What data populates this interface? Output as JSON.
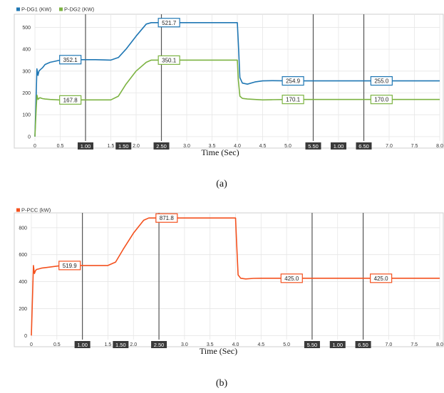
{
  "chart_data": [
    {
      "type": "line",
      "caption": "(a)",
      "xlabel": "Time (Sec)",
      "ylabel": "",
      "xlim": [
        0,
        8.0
      ],
      "ylim": [
        -20,
        560
      ],
      "x_ticks": [
        "0",
        "0.5",
        "1.0",
        "1.5",
        "2.0",
        "2.5",
        "3.0",
        "3.5",
        "4.0",
        "4.5",
        "5.0",
        "5.5",
        "6.0",
        "6.5",
        "7.0",
        "7.5",
        "8.0"
      ],
      "y_ticks": [
        "0",
        "100",
        "200",
        "300",
        "400",
        "500"
      ],
      "grid": true,
      "legend_position": "top-left",
      "series": [
        {
          "name": "P-DG1 (KW)",
          "color": "#1f77b4",
          "x": [
            0,
            0.02,
            0.04,
            0.06,
            0.08,
            0.1,
            0.15,
            0.2,
            0.3,
            0.4,
            0.5,
            0.6,
            0.8,
            1.0,
            1.2,
            1.5,
            1.65,
            1.8,
            2.0,
            2.2,
            2.3,
            2.5,
            2.8,
            3.2,
            3.6,
            3.9,
            4.0,
            4.02,
            4.05,
            4.1,
            4.2,
            4.35,
            4.5,
            4.7,
            5.0,
            5.5,
            6.0,
            6.5,
            7.0,
            8.0
          ],
          "y": [
            0,
            150,
            310,
            280,
            300,
            305,
            315,
            330,
            340,
            345,
            350,
            352,
            352.1,
            352,
            352,
            350,
            362,
            400,
            460,
            515,
            521.7,
            521.7,
            521.7,
            521.7,
            521.7,
            521.7,
            521.7,
            430,
            270,
            245,
            240,
            250,
            255,
            256,
            255,
            254.9,
            255,
            255,
            255,
            255
          ]
        },
        {
          "name": "P-DG2 (KW)",
          "color": "#7cb342",
          "x": [
            0,
            0.02,
            0.04,
            0.06,
            0.08,
            0.1,
            0.15,
            0.2,
            0.3,
            0.5,
            1.0,
            1.5,
            1.65,
            1.8,
            2.0,
            2.2,
            2.3,
            2.5,
            3.0,
            3.5,
            3.9,
            4.0,
            4.02,
            4.05,
            4.1,
            4.2,
            4.35,
            4.5,
            4.7,
            5.0,
            5.5,
            6.0,
            6.5,
            7.0,
            8.0
          ],
          "y": [
            0,
            100,
            190,
            170,
            175,
            178,
            174,
            172,
            170,
            167.8,
            168,
            168,
            185,
            240,
            300,
            340,
            350,
            350.1,
            350,
            350,
            350,
            350,
            260,
            185,
            175,
            172,
            170,
            168,
            169,
            170,
            170.1,
            170,
            170,
            170,
            170
          ]
        }
      ],
      "cursors": [
        {
          "x": 1.0,
          "label": "1.00"
        },
        {
          "x": 2.5,
          "label": "2.50"
        },
        {
          "x": 5.5,
          "label": "5.50"
        },
        {
          "x": 6.5,
          "label": "6.50"
        }
      ],
      "cursor_delta_labels": [
        {
          "x": 1.75,
          "label": "1.50"
        },
        {
          "x": 6.0,
          "label": "1.00"
        }
      ],
      "data_labels": [
        {
          "series": 0,
          "x": 0.7,
          "y": 352.1,
          "text": "352.1"
        },
        {
          "series": 0,
          "x": 2.65,
          "y": 521.7,
          "text": "521.7"
        },
        {
          "series": 0,
          "x": 5.1,
          "y": 254.9,
          "text": "254.9"
        },
        {
          "series": 0,
          "x": 6.85,
          "y": 255.0,
          "text": "255.0"
        },
        {
          "series": 1,
          "x": 0.7,
          "y": 167.8,
          "text": "167.8"
        },
        {
          "series": 1,
          "x": 2.65,
          "y": 350.1,
          "text": "350.1"
        },
        {
          "series": 1,
          "x": 5.1,
          "y": 170.1,
          "text": "170.1"
        },
        {
          "series": 1,
          "x": 6.85,
          "y": 170.0,
          "text": "170.0"
        }
      ]
    },
    {
      "type": "line",
      "caption": "(b)",
      "xlabel": "Time (Sec)",
      "ylabel": "",
      "xlim": [
        0,
        8.0
      ],
      "ylim": [
        -30,
        910
      ],
      "x_ticks": [
        "0",
        "0.5",
        "1.0",
        "1.5",
        "2.0",
        "2.5",
        "3.0",
        "3.5",
        "4.0",
        "4.5",
        "5.0",
        "5.5",
        "6.0",
        "6.5",
        "7.0",
        "7.5",
        "8.0"
      ],
      "y_ticks": [
        "0",
        "200",
        "400",
        "600",
        "800"
      ],
      "grid": true,
      "legend_position": "top-left",
      "series": [
        {
          "name": "P-PCC (kW)",
          "color": "#f4511e",
          "x": [
            0,
            0.02,
            0.04,
            0.06,
            0.08,
            0.1,
            0.15,
            0.2,
            0.3,
            0.5,
            0.6,
            0.8,
            1.0,
            1.2,
            1.5,
            1.65,
            1.8,
            2.0,
            2.2,
            2.3,
            2.5,
            3.0,
            3.5,
            3.9,
            4.0,
            4.02,
            4.05,
            4.1,
            4.2,
            4.35,
            4.5,
            5.0,
            5.5,
            6.0,
            6.5,
            7.0,
            8.0
          ],
          "y": [
            0,
            250,
            520,
            460,
            480,
            490,
            495,
            500,
            505,
            515,
            519.9,
            520,
            520,
            520,
            520,
            545,
            640,
            760,
            855,
            871.8,
            871.8,
            871.8,
            871.8,
            871.8,
            871.8,
            700,
            450,
            425,
            420,
            424,
            425,
            425,
            425.0,
            425,
            425.0,
            425,
            425
          ]
        }
      ],
      "cursors": [
        {
          "x": 1.0,
          "label": "1.00"
        },
        {
          "x": 2.5,
          "label": "2.50"
        },
        {
          "x": 5.5,
          "label": "5.50"
        },
        {
          "x": 6.5,
          "label": "6.50"
        }
      ],
      "cursor_delta_labels": [
        {
          "x": 1.75,
          "label": "1.50"
        },
        {
          "x": 6.0,
          "label": "1.00"
        }
      ],
      "data_labels": [
        {
          "series": 0,
          "x": 0.75,
          "y": 519.9,
          "text": "519.9"
        },
        {
          "series": 0,
          "x": 2.65,
          "y": 871.8,
          "text": "871.8"
        },
        {
          "series": 0,
          "x": 5.1,
          "y": 425.0,
          "text": "425.0"
        },
        {
          "series": 0,
          "x": 6.85,
          "y": 425.0,
          "text": "425.0"
        }
      ]
    }
  ]
}
